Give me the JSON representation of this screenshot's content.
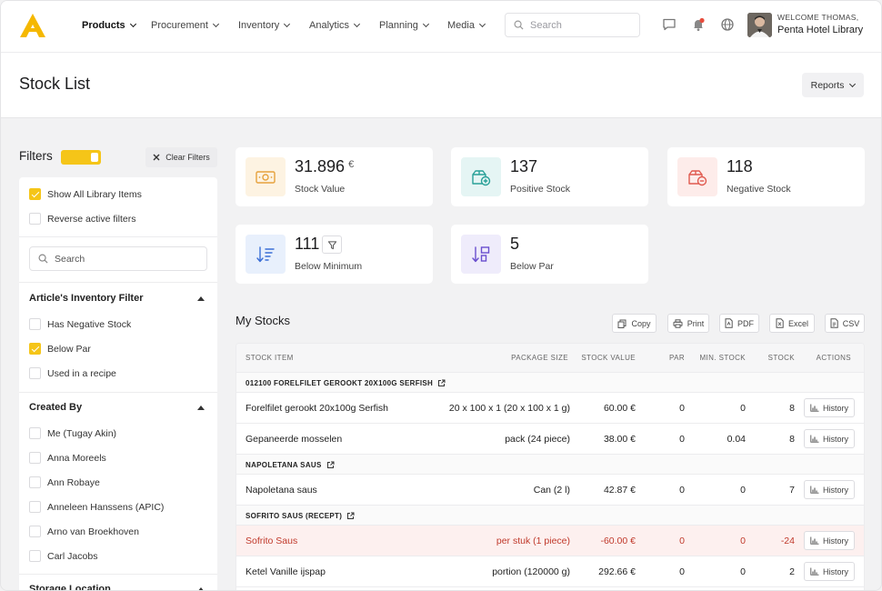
{
  "nav": {
    "items": [
      {
        "label": "Products",
        "active": true
      },
      {
        "label": "Procurement"
      },
      {
        "label": "Inventory"
      },
      {
        "label": "Analytics"
      },
      {
        "label": "Planning"
      },
      {
        "label": "Media"
      }
    ],
    "search_placeholder": "Search",
    "welcome": "WELCOME THOMAS,",
    "organization": "Penta Hotel Library"
  },
  "page": {
    "title": "Stock List",
    "reports_label": "Reports"
  },
  "filters": {
    "title": "Filters",
    "clear_label": "Clear Filters",
    "options": [
      {
        "label": "Show All Library Items",
        "checked": true
      },
      {
        "label": "Reverse active filters",
        "checked": false
      }
    ],
    "search_placeholder": "Search",
    "inventory_filter": {
      "title": "Article's Inventory Filter",
      "options": [
        {
          "label": "Has Negative Stock",
          "checked": false
        },
        {
          "label": "Below Par",
          "checked": true
        },
        {
          "label": "Used in a recipe",
          "checked": false
        }
      ]
    },
    "created_by": {
      "title": "Created By",
      "options": [
        {
          "label": "Me (Tugay Akin)",
          "checked": false
        },
        {
          "label": "Anna Moreels",
          "checked": false
        },
        {
          "label": "Ann Robaye",
          "checked": false
        },
        {
          "label": "Anneleen Hanssens (APIC)",
          "checked": false
        },
        {
          "label": "Arno van Broekhoven",
          "checked": false
        },
        {
          "label": "Carl Jacobs",
          "checked": false
        }
      ]
    },
    "storage_location": {
      "title": "Storage Location"
    }
  },
  "stats": [
    {
      "value": "31.896",
      "currency": "€",
      "label": "Stock Value",
      "icon": "cash-icon",
      "tint": "#fdf3e2",
      "color": "#e6a23c"
    },
    {
      "value": "137",
      "label": "Positive Stock",
      "icon": "box-plus-icon",
      "tint": "#e5f5f4",
      "color": "#2aa198"
    },
    {
      "value": "118",
      "label": "Negative Stock",
      "icon": "box-minus-icon",
      "tint": "#fdecea",
      "color": "#e05a4f"
    },
    {
      "value": "111",
      "label": "Below Minimum",
      "icon": "sort-down-icon",
      "tint": "#e8f0fc",
      "color": "#3b6fd6"
    },
    {
      "value": "5",
      "label": "Below Par",
      "icon": "sort-grid-icon",
      "tint": "#efecfb",
      "color": "#6a4fcf"
    }
  ],
  "stocks": {
    "title": "My Stocks",
    "export_buttons": [
      "Copy",
      "Print",
      "PDF",
      "Excel",
      "CSV"
    ],
    "columns": [
      "STOCK ITEM",
      "PACKAGE SIZE",
      "STOCK VALUE",
      "PAR",
      "MIN. STOCK",
      "STOCK",
      "ACTIONS"
    ],
    "history_label": "History",
    "groups": [
      {
        "name": "012100 FORELFILET GEROOKT 20X100G SERFISH",
        "rows": [
          {
            "item": "Forelfilet gerookt 20x100g Serfish",
            "package": "20 x 100 x 1 (20 x 100 x 1 g)",
            "value": "60.00 €",
            "par": "0",
            "min": "0",
            "stock": "8"
          },
          {
            "item": "Gepaneerde mosselen",
            "package": "pack (24 piece)",
            "value": "38.00 €",
            "par": "0",
            "min": "0.04",
            "stock": "8"
          }
        ]
      },
      {
        "name": "NAPOLETANA SAUS",
        "rows": [
          {
            "item": "Napoletana saus",
            "package": "Can (2 l)",
            "value": "42.87 €",
            "par": "0",
            "min": "0",
            "stock": "7"
          }
        ]
      },
      {
        "name": "SOFRITO SAUS (RECEPT)",
        "rows": [
          {
            "item": "Sofrito Saus",
            "package": "per stuk (1 piece)",
            "value": "-60.00 €",
            "par": "0",
            "min": "0",
            "stock": "-24",
            "negative": true
          },
          {
            "item": "Ketel Vanille ijspap",
            "package": "portion (120000 g)",
            "value": "292.66 €",
            "par": "0",
            "min": "0",
            "stock": "2"
          }
        ]
      }
    ]
  }
}
